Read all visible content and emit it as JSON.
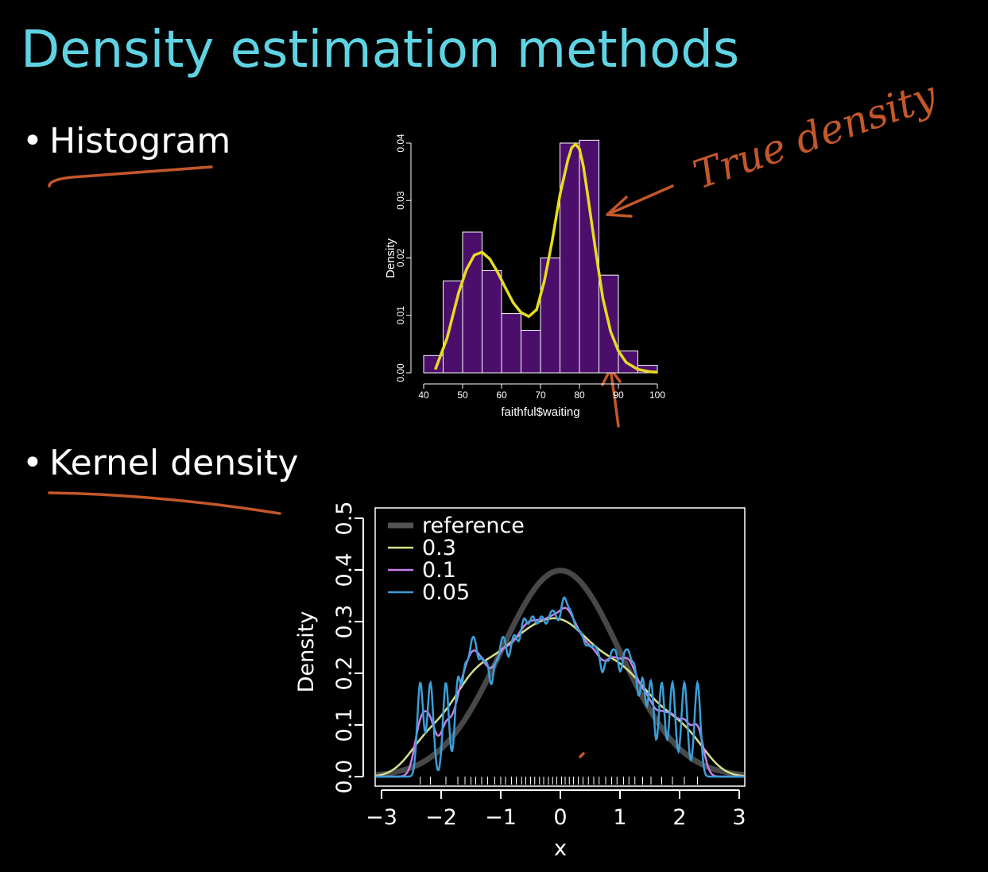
{
  "slide": {
    "title": "Density estimation methods",
    "bullets": [
      {
        "text": "Histogram"
      },
      {
        "text": "Kernel density"
      }
    ],
    "bullet_glyph": "•"
  },
  "annotations": {
    "handwritten_note": "True density",
    "ink_color": "#c4572a"
  },
  "chart_data": [
    {
      "type": "bar",
      "xlabel": "faithful$waiting",
      "ylabel": "Density",
      "xlim": [
        40,
        100
      ],
      "ylim": [
        0,
        0.04
      ],
      "x_ticks": [
        "40",
        "50",
        "60",
        "70",
        "80",
        "90",
        "100"
      ],
      "y_ticks": [
        "0.00",
        "0.01",
        "0.02",
        "0.03",
        "0.04"
      ],
      "bins": [
        [
          40,
          45
        ],
        [
          45,
          50
        ],
        [
          50,
          55
        ],
        [
          55,
          60
        ],
        [
          60,
          65
        ],
        [
          65,
          70
        ],
        [
          70,
          75
        ],
        [
          75,
          80
        ],
        [
          80,
          85
        ],
        [
          85,
          90
        ],
        [
          90,
          95
        ],
        [
          95,
          100
        ]
      ],
      "values": [
        0.003,
        0.016,
        0.0245,
        0.0178,
        0.0103,
        0.0074,
        0.02,
        0.04,
        0.0405,
        0.017,
        0.0038,
        0.0013
      ],
      "bar_color": "#4b0f6b",
      "curve_color": "#e6dc1f",
      "curve_x": [
        43,
        46,
        49,
        51,
        53,
        55,
        57,
        59,
        61,
        63,
        65,
        67,
        69,
        71,
        73,
        75,
        77,
        78,
        79,
        80,
        81,
        82,
        84,
        86,
        88,
        90,
        92,
        95,
        98,
        100
      ],
      "curve_y": [
        0.0006,
        0.006,
        0.014,
        0.018,
        0.0205,
        0.021,
        0.0198,
        0.0175,
        0.0148,
        0.0122,
        0.0105,
        0.0098,
        0.011,
        0.016,
        0.023,
        0.031,
        0.037,
        0.0392,
        0.0398,
        0.039,
        0.036,
        0.0315,
        0.022,
        0.013,
        0.0072,
        0.0038,
        0.0018,
        0.0006,
        0.0002,
        0.0001
      ]
    },
    {
      "type": "line",
      "xlabel": "x",
      "ylabel": "Density",
      "xlim": [
        -3,
        3
      ],
      "ylim": [
        0,
        0.5
      ],
      "x_ticks": [
        "−3",
        "−2",
        "−1",
        "0",
        "1",
        "2",
        "3"
      ],
      "y_ticks": [
        "0.0",
        "0.1",
        "0.2",
        "0.3",
        "0.4",
        "0.5"
      ],
      "legend": "top-left",
      "series": [
        {
          "name": "reference",
          "color": "#555555",
          "kind": "normal"
        },
        {
          "name": "0.3",
          "color": "#d6e08a",
          "kind": "kde",
          "bandwidth": 0.3
        },
        {
          "name": "0.1",
          "color": "#c77ee8",
          "kind": "kde",
          "bandwidth": 0.1
        },
        {
          "name": "0.05",
          "color": "#3a9fd8",
          "kind": "kde",
          "bandwidth": 0.05
        }
      ],
      "sample": [
        -2.35,
        -2.18,
        -1.92,
        -1.72,
        -1.6,
        -1.5,
        -1.42,
        -1.32,
        -1.22,
        -1.1,
        -1.0,
        -0.92,
        -0.82,
        -0.74,
        -0.65,
        -0.58,
        -0.5,
        -0.43,
        -0.35,
        -0.28,
        -0.2,
        -0.13,
        -0.06,
        0.02,
        0.08,
        0.15,
        0.22,
        0.3,
        0.38,
        0.47,
        0.56,
        0.65,
        0.76,
        0.86,
        0.95,
        1.06,
        1.15,
        1.25,
        1.38,
        1.52,
        1.7,
        1.88,
        2.08,
        2.3
      ]
    }
  ]
}
